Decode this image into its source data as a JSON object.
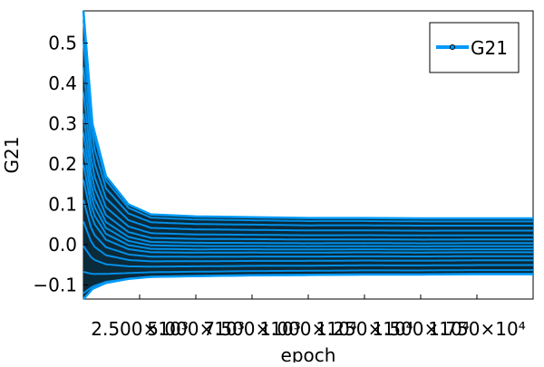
{
  "chart_data": {
    "type": "line",
    "xlabel": "epoch",
    "ylabel": "G21",
    "legend_position": "top-right",
    "grid": false,
    "xlim": [
      0,
      20000
    ],
    "ylim": [
      -0.135,
      0.58
    ],
    "x_ticks": [
      2500,
      5000,
      7500,
      10000,
      12500,
      15000,
      17500
    ],
    "x_tick_labels": [
      "2.500×10³",
      "5.000×10³",
      "7.500×10³",
      "1.000×10⁴",
      "1.250×10⁴",
      "1.500×10⁴",
      "1.750×10⁴"
    ],
    "y_ticks": [
      -0.1,
      0.0,
      0.1,
      0.2,
      0.3,
      0.4,
      0.5
    ],
    "y_tick_labels": [
      "−0.1",
      "0.0",
      "0.1",
      "0.2",
      "0.3",
      "0.4",
      "0.5"
    ],
    "series": [
      {
        "name": "G21",
        "color": "#009af9",
        "marker": "circle",
        "marker_color": "#000000",
        "x": [
          0,
          400,
          1000,
          2000,
          3000,
          5000,
          7500,
          10000,
          12500,
          15000,
          17500,
          20000
        ],
        "y_upper": [
          0.58,
          0.3,
          0.17,
          0.1,
          0.075,
          0.07,
          0.068,
          0.066,
          0.066,
          0.065,
          0.065,
          0.065
        ],
        "y_lower": [
          -0.135,
          -0.11,
          -0.095,
          -0.085,
          -0.08,
          -0.078,
          -0.076,
          -0.075,
          -0.074,
          -0.074,
          -0.073,
          -0.073
        ]
      }
    ]
  }
}
